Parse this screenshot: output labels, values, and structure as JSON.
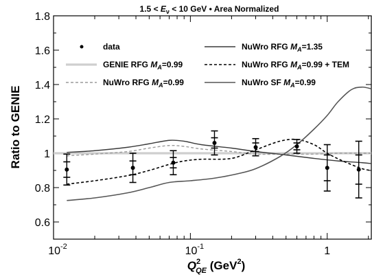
{
  "chart_data": {
    "type": "scatter",
    "title_parts": {
      "pre": "1.5 < ",
      "var": "E",
      "sub": "ν",
      "post": " < 10 GeV • Area Normalized"
    },
    "xlabel_parts": {
      "var": "Q",
      "sup": "2",
      "sub": "QE",
      "unit": " (GeV",
      "unit_sup": "2",
      "unit_close": ")"
    },
    "ylabel": "Ratio to GENIE",
    "xscale": "log",
    "xlim": [
      0.01,
      2.1
    ],
    "ylim": [
      0.5,
      1.8
    ],
    "y_ticks": [
      0.6,
      0.8,
      1,
      1.2,
      1.4,
      1.6,
      1.8
    ],
    "y_tick_labels": [
      "0.6",
      "0.8",
      "1",
      "1.2",
      "1.4",
      "1.6",
      "1.8"
    ],
    "x_ticks": [
      0.01,
      0.1,
      1
    ],
    "x_tick_labels": [
      {
        "base": "10",
        "exp": "-2"
      },
      {
        "base": "10",
        "exp": "-1"
      },
      {
        "base": "1",
        "exp": ""
      }
    ],
    "legend_placement": "top",
    "legend": [
      {
        "key": "data",
        "label": "data"
      },
      {
        "key": "genie",
        "pre": "GENIE RFG ",
        "var": "M",
        "sub": "A",
        "post": "=0.99"
      },
      {
        "key": "nuwro99",
        "pre": "NuWro RFG ",
        "var": "M",
        "sub": "A",
        "post": "=0.99"
      },
      {
        "key": "nuwro135",
        "pre": "NuWro RFG ",
        "var": "M",
        "sub": "A",
        "post": "=1.35"
      },
      {
        "key": "tem",
        "pre": "NuWro RFG ",
        "var": "M",
        "sub": "A",
        "post": "=0.99 + TEM"
      },
      {
        "key": "sf",
        "pre": "NuWro SF ",
        "var": "M",
        "sub": "A",
        "post": "=0.99"
      }
    ],
    "data_points": {
      "x": [
        0.0125,
        0.038,
        0.075,
        0.15,
        0.3,
        0.6,
        1.0,
        1.7
      ],
      "y": [
        0.905,
        0.915,
        0.945,
        1.06,
        1.035,
        1.04,
        0.915,
        0.905
      ],
      "err_total": [
        0.09,
        0.085,
        0.07,
        0.07,
        0.05,
        0.04,
        0.135,
        0.165
      ],
      "err_stat": [
        0.045,
        0.04,
        0.03,
        0.03,
        0.025,
        0.02,
        0.075,
        0.085
      ]
    },
    "series": [
      {
        "key": "genie",
        "style": "solid-light",
        "x": [
          0.01,
          2.1
        ],
        "y": [
          1.0,
          1.0
        ]
      },
      {
        "key": "nuwro99",
        "style": "dashed-light",
        "x": [
          0.0125,
          0.02,
          0.035,
          0.05,
          0.07,
          0.09,
          0.12,
          0.2,
          0.3,
          0.5,
          0.8,
          1.2,
          1.8,
          2.1
        ],
        "y": [
          0.985,
          0.995,
          1.01,
          1.03,
          1.045,
          1.04,
          1.025,
          1.01,
          0.995,
          0.995,
          0.995,
          1.0,
          1.0,
          1.0
        ]
      },
      {
        "key": "nuwro135",
        "style": "solid-dark",
        "x": [
          0.0125,
          0.02,
          0.035,
          0.05,
          0.07,
          0.09,
          0.12,
          0.2,
          0.3,
          0.5,
          0.8,
          1.2,
          1.8,
          2.1
        ],
        "y": [
          1.005,
          1.015,
          1.035,
          1.055,
          1.075,
          1.07,
          1.05,
          1.03,
          1.01,
          0.99,
          0.97,
          0.955,
          0.945,
          0.94
        ]
      },
      {
        "key": "tem",
        "style": "dashed-dark",
        "x": [
          0.0125,
          0.02,
          0.035,
          0.05,
          0.07,
          0.09,
          0.12,
          0.2,
          0.3,
          0.45,
          0.6,
          0.8,
          1.0,
          1.3,
          1.8,
          2.1
        ],
        "y": [
          0.82,
          0.84,
          0.87,
          0.9,
          0.935,
          0.955,
          0.965,
          0.97,
          1.02,
          1.07,
          1.08,
          1.05,
          1.0,
          0.955,
          0.91,
          0.9
        ]
      },
      {
        "key": "sf",
        "style": "solid-mid",
        "x": [
          0.0125,
          0.02,
          0.035,
          0.05,
          0.07,
          0.1,
          0.15,
          0.22,
          0.3,
          0.45,
          0.6,
          0.8,
          1.0,
          1.2,
          1.5,
          1.8,
          2.1
        ],
        "y": [
          0.725,
          0.74,
          0.77,
          0.8,
          0.83,
          0.84,
          0.855,
          0.88,
          0.91,
          0.98,
          1.05,
          1.14,
          1.22,
          1.3,
          1.37,
          1.385,
          1.375
        ]
      }
    ]
  }
}
